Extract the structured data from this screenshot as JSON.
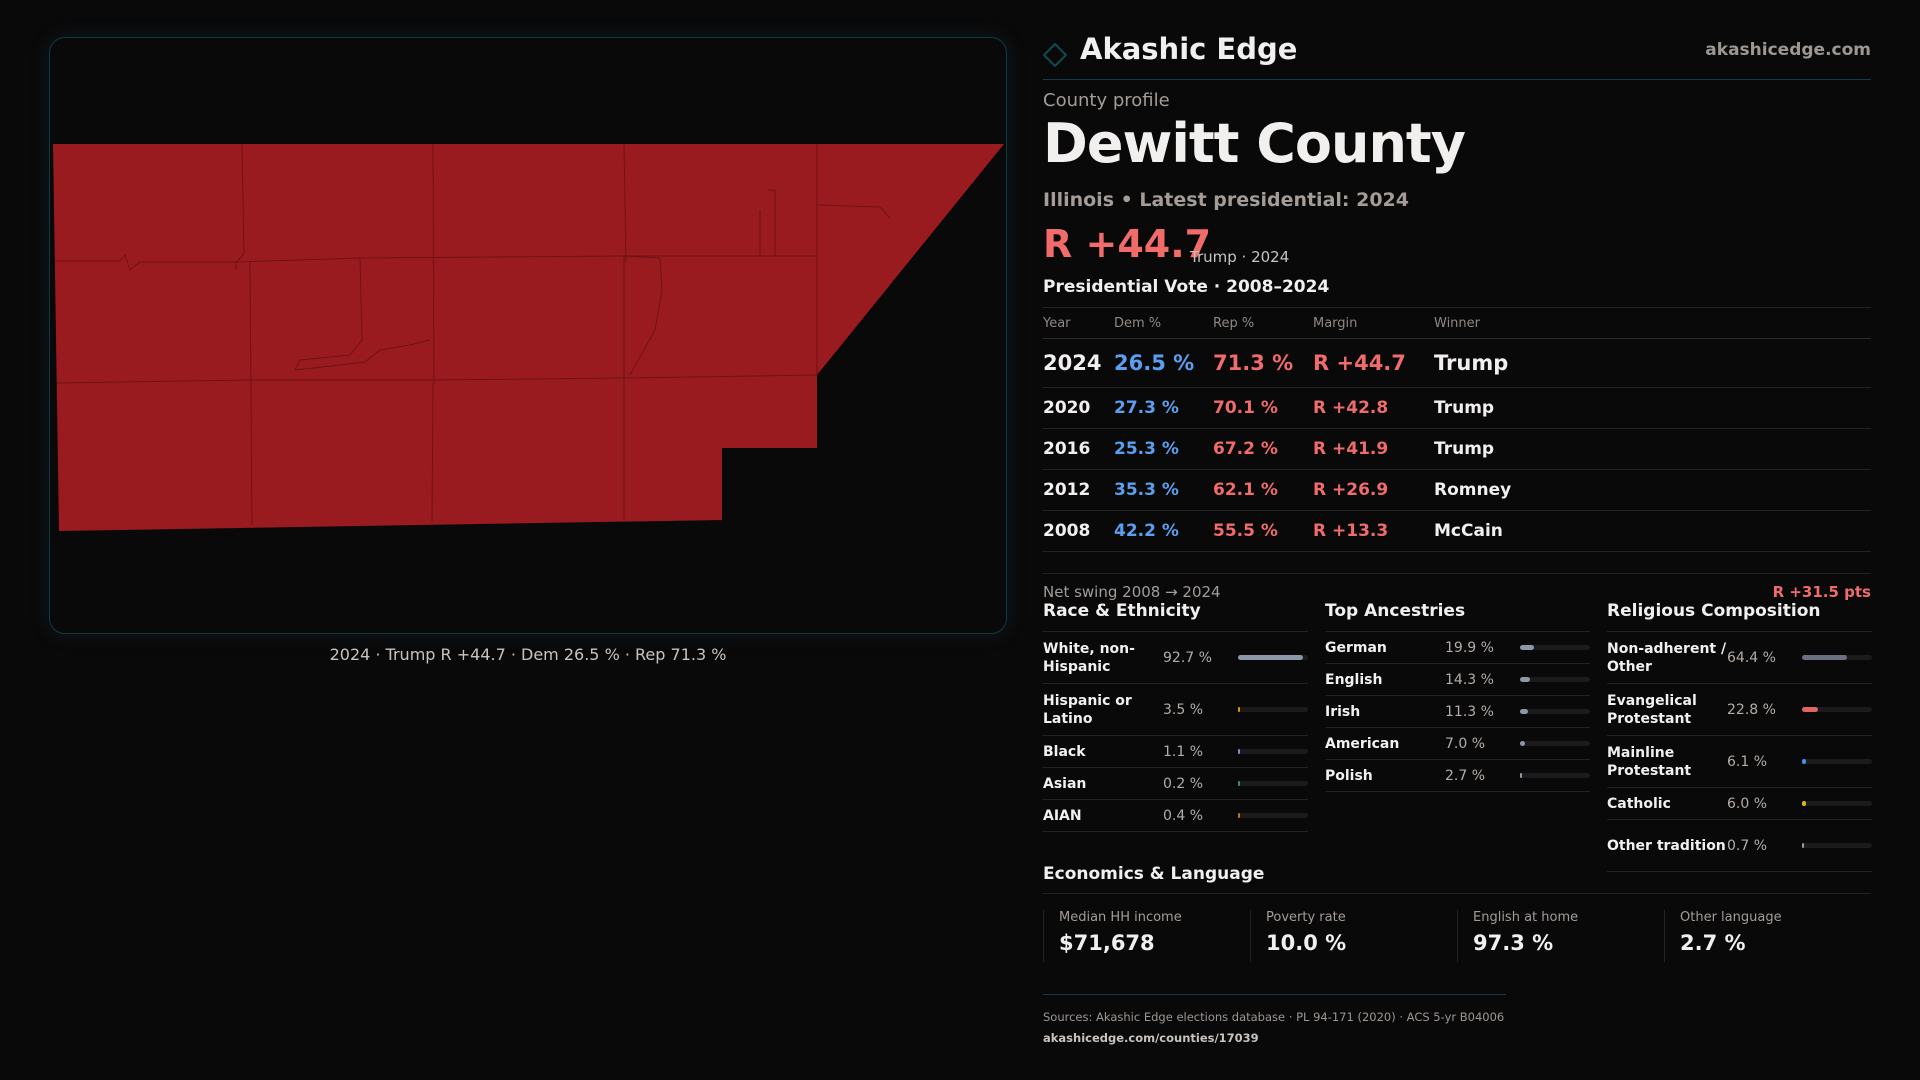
{
  "header": {
    "brand": "Akashic Edge",
    "site": "akashicedge.com"
  },
  "profile": {
    "kicker": "County profile",
    "title": "Dewitt County",
    "subtitle": "Illinois • Latest presidential: 2024",
    "margin": "R +44.7",
    "margin_note": "Trump · 2024"
  },
  "map": {
    "caption": "2024 · Trump R +44.7 · Dem 26.5 % · Rep 71.3 %",
    "fill": "#9a1b1f"
  },
  "votes": {
    "title": "Presidential Vote · 2008–2024",
    "columns": [
      "Year",
      "Dem %",
      "Rep %",
      "Margin",
      "Winner"
    ],
    "rows": [
      {
        "year": "2024",
        "dem": "26.5 %",
        "rep": "71.3 %",
        "margin": "R +44.7",
        "winner": "Trump"
      },
      {
        "year": "2020",
        "dem": "27.3 %",
        "rep": "70.1 %",
        "margin": "R +42.8",
        "winner": "Trump"
      },
      {
        "year": "2016",
        "dem": "25.3 %",
        "rep": "67.2 %",
        "margin": "R +41.9",
        "winner": "Trump"
      },
      {
        "year": "2012",
        "dem": "35.3 %",
        "rep": "62.1 %",
        "margin": "R +26.9",
        "winner": "Romney"
      },
      {
        "year": "2008",
        "dem": "42.2 %",
        "rep": "55.5 %",
        "margin": "R +13.3",
        "winner": "McCain"
      }
    ],
    "swing_label": "Net swing 2008 → 2024",
    "swing_value": "R +31.5 pts"
  },
  "race": {
    "title": "Race & Ethnicity",
    "items": [
      {
        "label": "White, non-Hispanic",
        "value": "92.7 %",
        "pct": 92.7,
        "color": "#8d97a8"
      },
      {
        "label": "Hispanic or Latino",
        "value": "3.5 %",
        "pct": 3.5,
        "color": "#e0930c"
      },
      {
        "label": "Black",
        "value": "1.1 %",
        "pct": 1.1,
        "color": "#8a86d8"
      },
      {
        "label": "Asian",
        "value": "0.2 %",
        "pct": 0.2,
        "color": "#3a8f6a"
      },
      {
        "label": "AIAN",
        "value": "0.4 %",
        "pct": 0.4,
        "color": "#c8701a"
      }
    ]
  },
  "ancestry": {
    "title": "Top Ancestries",
    "items": [
      {
        "label": "German",
        "value": "19.9 %",
        "pct": 19.9,
        "color": "#8d97a8"
      },
      {
        "label": "English",
        "value": "14.3 %",
        "pct": 14.3,
        "color": "#8d97a8"
      },
      {
        "label": "Irish",
        "value": "11.3 %",
        "pct": 11.3,
        "color": "#8d97a8"
      },
      {
        "label": "American",
        "value": "7.0 %",
        "pct": 7.0,
        "color": "#8d97a8"
      },
      {
        "label": "Polish",
        "value": "2.7 %",
        "pct": 2.7,
        "color": "#8d97a8"
      }
    ]
  },
  "religion": {
    "title": "Religious Composition",
    "items": [
      {
        "label": "Non-adherent / Other",
        "value": "64.4 %",
        "pct": 64.4,
        "color": "#6b7080"
      },
      {
        "label": "Evangelical Protestant",
        "value": "22.8 %",
        "pct": 22.8,
        "color": "#e06565"
      },
      {
        "label": "Mainline Protestant",
        "value": "6.1 %",
        "pct": 6.1,
        "color": "#4a8fe6"
      },
      {
        "label": "Catholic",
        "value": "6.0 %",
        "pct": 6.0,
        "color": "#e2b21c"
      },
      {
        "label": "Other tradition",
        "value": "0.7 %",
        "pct": 0.7,
        "color": "#9a9a9a"
      }
    ]
  },
  "economics": {
    "title": "Economics & Language",
    "cards": [
      {
        "label": "Median HH income",
        "value": "$71,678"
      },
      {
        "label": "Poverty rate",
        "value": "10.0 %"
      },
      {
        "label": "English at home",
        "value": "97.3 %"
      },
      {
        "label": "Other language",
        "value": "2.7 %"
      }
    ]
  },
  "footer": {
    "sources": "Sources: Akashic Edge elections database · PL 94-171 (2020) · ACS 5-yr B04006",
    "url": "akashicedge.com/counties/17039"
  }
}
